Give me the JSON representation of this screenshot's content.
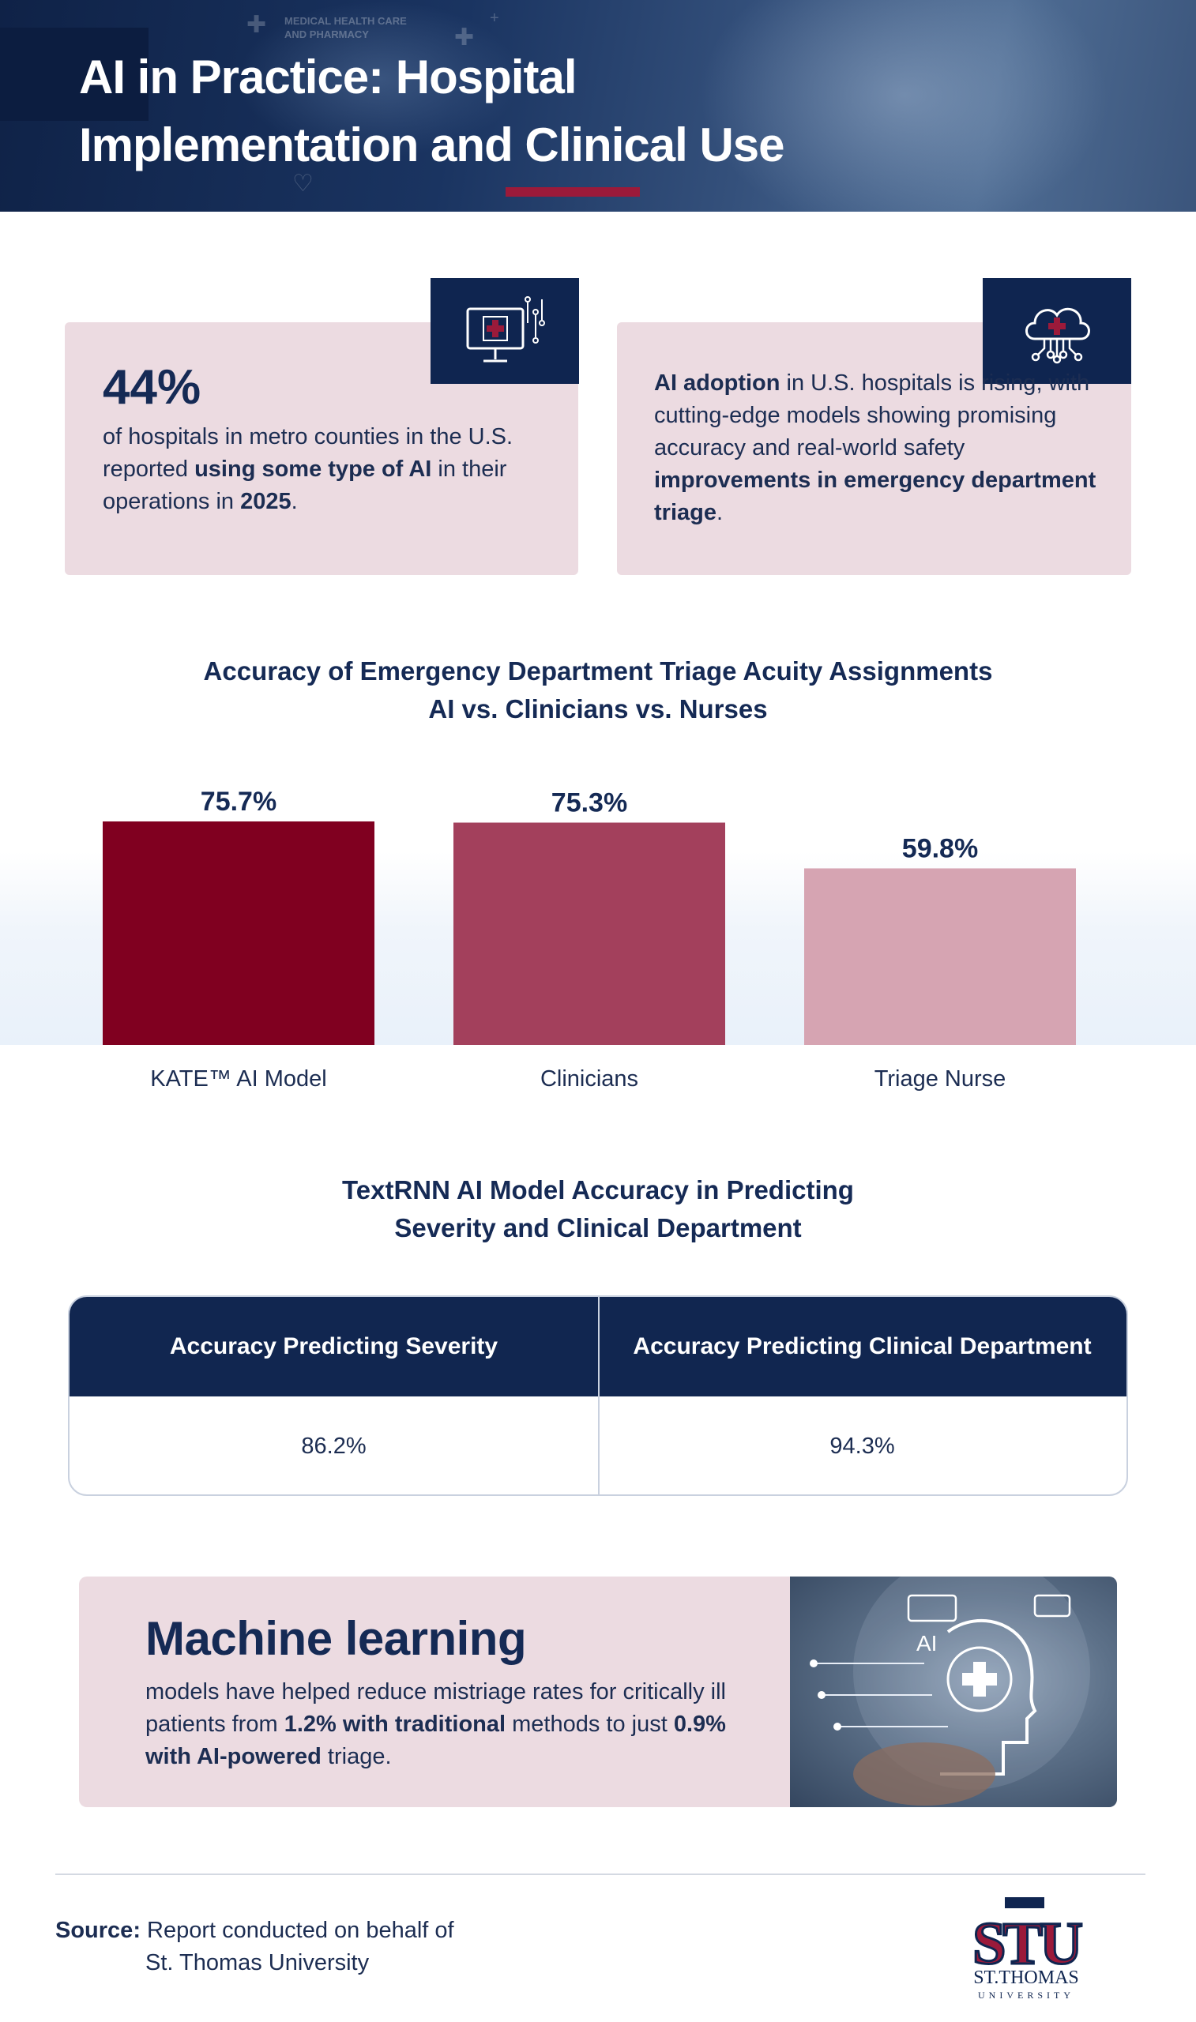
{
  "header": {
    "title_line1": "AI in Practice: Hospital",
    "title_line2": "Implementation and Clinical Use",
    "bg_text_line1": "MEDICAL HEALTH CARE",
    "bg_text_line2": "AND PHARMACY"
  },
  "stat_card_left": {
    "icon": "computer-medical-icon",
    "big_stat": "44%",
    "text_a": "of hospitals in metro counties in the U.S. reported ",
    "text_b": "using some type of AI",
    "text_c": " in their operations in ",
    "text_d": "2025",
    "text_e": "."
  },
  "stat_card_right": {
    "icon": "cloud-medical-icon",
    "text_a": "AI adoption",
    "text_b": " in U.S. hospitals is rising, with cutting-edge models showing promising accuracy and real-world safety ",
    "text_c": "improvements in emergency department triage",
    "text_d": "."
  },
  "chart_data": {
    "type": "bar",
    "title_line1": "Accuracy of Emergency Department Triage Acuity Assignments",
    "title_line2": "AI vs. Clinicians vs. Nurses",
    "categories": [
      "KATE™ AI Model",
      "Clinicians",
      "Triage Nurse"
    ],
    "values": [
      75.7,
      75.3,
      59.8
    ],
    "value_labels": [
      "75.7%",
      "75.3%",
      "59.8%"
    ],
    "colors": [
      "#800020",
      "#a3405c",
      "#d6a4b2"
    ],
    "xlabel": "",
    "ylabel": "",
    "ylim": [
      0,
      75.7
    ],
    "grid": false,
    "legend": "none"
  },
  "table": {
    "title_line1": "TextRNN AI Model Accuracy in Predicting",
    "title_line2": "Severity and Clinical Department",
    "headers": [
      "Accuracy Predicting Severity",
      "Accuracy Predicting Clinical Department"
    ],
    "values": [
      "86.2%",
      "94.3%"
    ]
  },
  "ml_box": {
    "title": "Machine learning",
    "text_a": "models have helped reduce mistriage rates for critically ill patients from ",
    "text_b": "1.2% with traditional",
    "text_c": " methods to just ",
    "text_d": "0.9% with AI-powered",
    "text_e": " triage.",
    "image_label": "AI"
  },
  "footer": {
    "source_label": "Source:",
    "source_line1": "Report conducted on behalf of",
    "source_line2": "St. Thomas University",
    "logo_letters": "STU",
    "logo_name": "ST.THOMAS",
    "logo_sub": "UNIVERSITY"
  },
  "colors": {
    "navy": "#112650",
    "maroon": "#800020",
    "rose": "#a3405c",
    "pink": "#d6a4b2",
    "card_bg": "#ecdbe1"
  }
}
